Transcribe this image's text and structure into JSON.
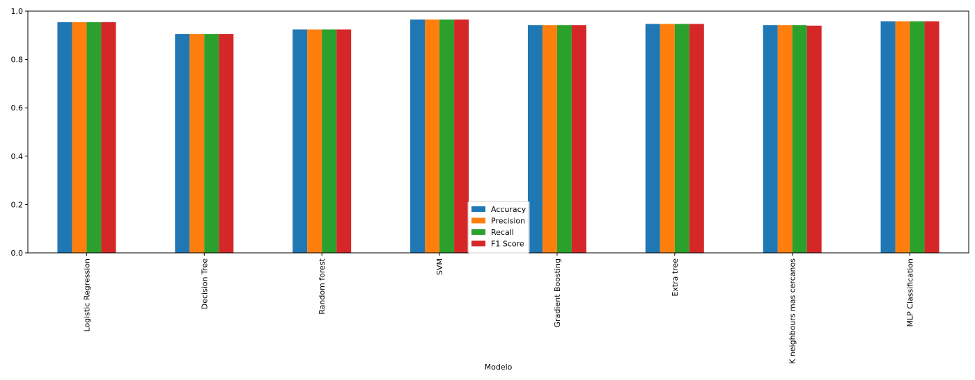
{
  "chart_data": {
    "type": "bar",
    "title": "",
    "xlabel": "Modelo",
    "ylabel": "",
    "ylim": [
      0,
      1.0
    ],
    "yticks": [
      "0.0",
      "0.2",
      "0.4",
      "0.6",
      "0.8",
      "1.0"
    ],
    "grid": false,
    "legend_position": "bottom-center",
    "categories": [
      "Logistic Regression",
      "Decision Tree",
      "Random forest",
      "SVM",
      "Gradient Boosting",
      "Extra tree",
      "K neighbours mas cercanos",
      "MLP Classification"
    ],
    "series": [
      {
        "name": "Accuracy",
        "color": "#1f77b4",
        "values": [
          0.954,
          0.905,
          0.924,
          0.965,
          0.942,
          0.947,
          0.942,
          0.958
        ]
      },
      {
        "name": "Precision",
        "color": "#ff7f0e",
        "values": [
          0.954,
          0.905,
          0.924,
          0.965,
          0.942,
          0.947,
          0.942,
          0.958
        ]
      },
      {
        "name": "Recall",
        "color": "#2ca02c",
        "values": [
          0.954,
          0.905,
          0.924,
          0.965,
          0.942,
          0.947,
          0.942,
          0.958
        ]
      },
      {
        "name": "F1 Score",
        "color": "#d62728",
        "values": [
          0.954,
          0.905,
          0.924,
          0.965,
          0.942,
          0.947,
          0.94,
          0.958
        ]
      }
    ]
  }
}
